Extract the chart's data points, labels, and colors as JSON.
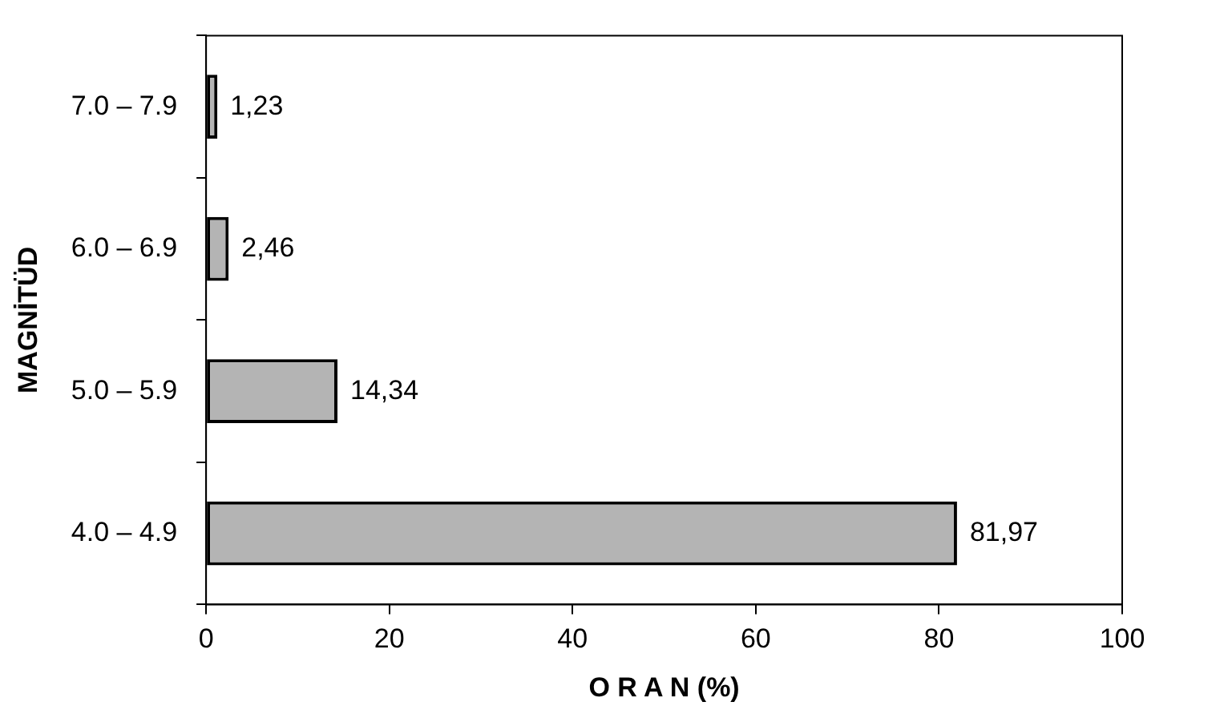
{
  "chart_data": {
    "type": "bar",
    "orientation": "horizontal",
    "xlabel": "O R A N (%)",
    "ylabel": "MAGNİTÜD",
    "categories": [
      "7.0 – 7.9",
      "6.0 – 6.9",
      "5.0 – 5.9",
      "4.0 – 4.9"
    ],
    "values": [
      1.23,
      2.46,
      14.34,
      81.97
    ],
    "value_labels": [
      "1,23",
      "2,46",
      "14,34",
      "81,97"
    ],
    "color": "#b4b4b4",
    "xlim": [
      0,
      100
    ],
    "xticks": [
      0,
      20,
      40,
      60,
      80,
      100
    ],
    "grid": false,
    "legend": false
  }
}
